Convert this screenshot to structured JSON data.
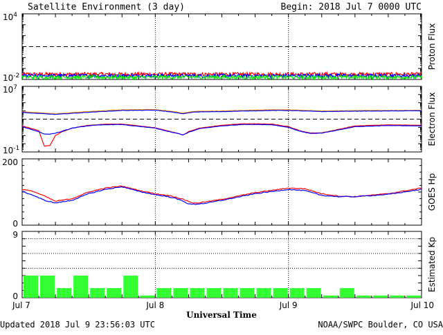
{
  "header": {
    "title": "Satellite Environment (3 day)",
    "begin": "Begin:  2018 Jul 7 0000 UTC"
  },
  "footer": {
    "updated": "Updated 2018 Jul  9 23:56:03 UTC",
    "source": "NOAA/SWPC Boulder, CO USA",
    "xlabel": "Universal Time"
  },
  "x_axis": {
    "ticks": [
      "Jul 7",
      "Jul 8",
      "Jul 9",
      "Jul 10"
    ],
    "range_hours": [
      0,
      72
    ]
  },
  "colors": {
    "red": "#ff0000",
    "blue": "#0000ff",
    "green": "#00ee00",
    "orange": "#ff9900",
    "kp_bar": "#33ff33"
  },
  "chart_data": [
    {
      "type": "line",
      "ylabel": "Proton Flux",
      "yscale": "log",
      "ylim": [
        0.01,
        10000
      ],
      "ytick_labels": [
        {
          "base": "10",
          "exp": "4"
        },
        {
          "base": "10",
          "exp": "-2"
        }
      ],
      "threshold": 10,
      "series": [
        {
          "color": "red",
          "level": 0.03
        },
        {
          "color": "blue",
          "level": 0.022
        },
        {
          "color": "green",
          "level": 0.016
        }
      ]
    },
    {
      "type": "line",
      "ylabel": "Electron Flux",
      "yscale": "log",
      "ylim": [
        0.1,
        10000000
      ],
      "ytick_labels": [
        {
          "base": "10",
          "exp": "7"
        },
        {
          "base": "10",
          "exp": "-1"
        }
      ],
      "threshold": 1000,
      "series": [
        {
          "color": "orange",
          "x": [
            0,
            3,
            6,
            12,
            18,
            24,
            27,
            29,
            31,
            36,
            45,
            48,
            54,
            60,
            66,
            72
          ],
          "y": [
            8000,
            6000,
            4500,
            8500,
            14000,
            15000,
            9000,
            5500,
            9000,
            10000,
            14000,
            14000,
            10000,
            11000,
            11500,
            12000
          ]
        },
        {
          "color": "blue",
          "x": [
            0,
            3,
            6,
            12,
            18,
            24,
            27,
            29,
            31,
            36,
            45,
            48,
            54,
            60,
            66,
            72
          ],
          "y": [
            6500,
            5000,
            3800,
            7000,
            11500,
            12500,
            7500,
            4500,
            7500,
            8500,
            11500,
            11500,
            8500,
            9500,
            10000,
            10500
          ]
        },
        {
          "color": "red",
          "x": [
            0,
            1.5,
            3,
            4,
            5,
            6,
            7,
            9,
            12,
            15,
            18,
            21,
            24,
            26,
            28,
            29,
            30,
            32,
            36,
            40,
            45,
            48,
            50,
            52,
            54,
            56,
            60,
            66,
            72
          ],
          "y": [
            150,
            80,
            40,
            0.5,
            0.6,
            10,
            25,
            80,
            180,
            240,
            250,
            150,
            90,
            40,
            20,
            12,
            30,
            80,
            180,
            280,
            250,
            120,
            40,
            20,
            22,
            40,
            150,
            200,
            180
          ]
        },
        {
          "color": "blue",
          "x": [
            0,
            1.5,
            3,
            4,
            5,
            6,
            7,
            9,
            12,
            15,
            18,
            21,
            24,
            26,
            28,
            29,
            30,
            32,
            36,
            40,
            45,
            48,
            50,
            52,
            54,
            56,
            60,
            66,
            72
          ],
          "y": [
            120,
            60,
            30,
            15,
            15,
            20,
            30,
            80,
            160,
            210,
            220,
            130,
            80,
            35,
            18,
            12,
            25,
            70,
            150,
            230,
            210,
            100,
            35,
            18,
            20,
            35,
            120,
            170,
            150
          ]
        }
      ]
    },
    {
      "type": "line",
      "ylabel": "GOES Hp",
      "ylim": [
        0,
        200
      ],
      "yticks": [
        0,
        200
      ],
      "series": [
        {
          "color": "red",
          "x": [
            0,
            2,
            4,
            6,
            9,
            12,
            15,
            18,
            21,
            24,
            27,
            29,
            30,
            31,
            33,
            36,
            42,
            48,
            51,
            54,
            57,
            60,
            66,
            72
          ],
          "y": [
            108,
            102,
            88,
            72,
            80,
            100,
            112,
            118,
            105,
            95,
            88,
            78,
            72,
            66,
            70,
            78,
            98,
            112,
            110,
            95,
            88,
            86,
            95,
            112
          ]
        },
        {
          "color": "blue",
          "x": [
            0,
            2,
            4,
            6,
            9,
            12,
            15,
            18,
            21,
            24,
            27,
            29,
            30,
            31,
            33,
            36,
            42,
            48,
            51,
            54,
            57,
            60,
            66,
            72
          ],
          "y": [
            102,
            90,
            75,
            67,
            75,
            95,
            108,
            116,
            102,
            92,
            84,
            73,
            64,
            63,
            66,
            75,
            95,
            108,
            104,
            90,
            86,
            86,
            93,
            108
          ]
        }
      ]
    },
    {
      "type": "bar",
      "ylabel": "Estimated Kp",
      "ylim": [
        0,
        9
      ],
      "yticks": [
        0,
        9
      ],
      "values": [
        3,
        3,
        1.3,
        3,
        1.3,
        1.3,
        3,
        0.3,
        1.3,
        1.3,
        1.3,
        1.3,
        1.3,
        1.3,
        1.3,
        1.3,
        1.3,
        1.3,
        0.3,
        1.3,
        0.3,
        0.3,
        0.3,
        0.3
      ]
    }
  ]
}
